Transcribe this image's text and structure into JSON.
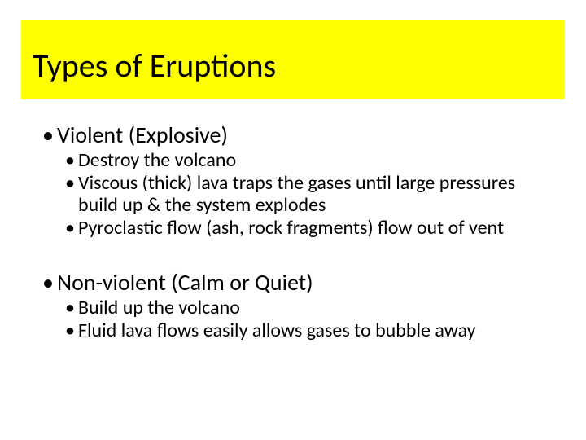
{
  "colors": {
    "title_bg": "#ffff00",
    "text": "#000000",
    "slide_bg": "#ffffff"
  },
  "title": "Types of Eruptions",
  "sections": [
    {
      "heading": "Violent (Explosive)",
      "items": [
        "Destroy the volcano",
        "Viscous (thick) lava traps the gases until large pressures build up & the system explodes",
        "Pyroclastic flow (ash, rock fragments) flow out of vent"
      ]
    },
    {
      "heading": "Non-violent (Calm or Quiet)",
      "items": [
        "Build up the volcano",
        "Fluid lava flows easily allows gases to bubble away"
      ]
    }
  ],
  "bullet_glyph": "•"
}
